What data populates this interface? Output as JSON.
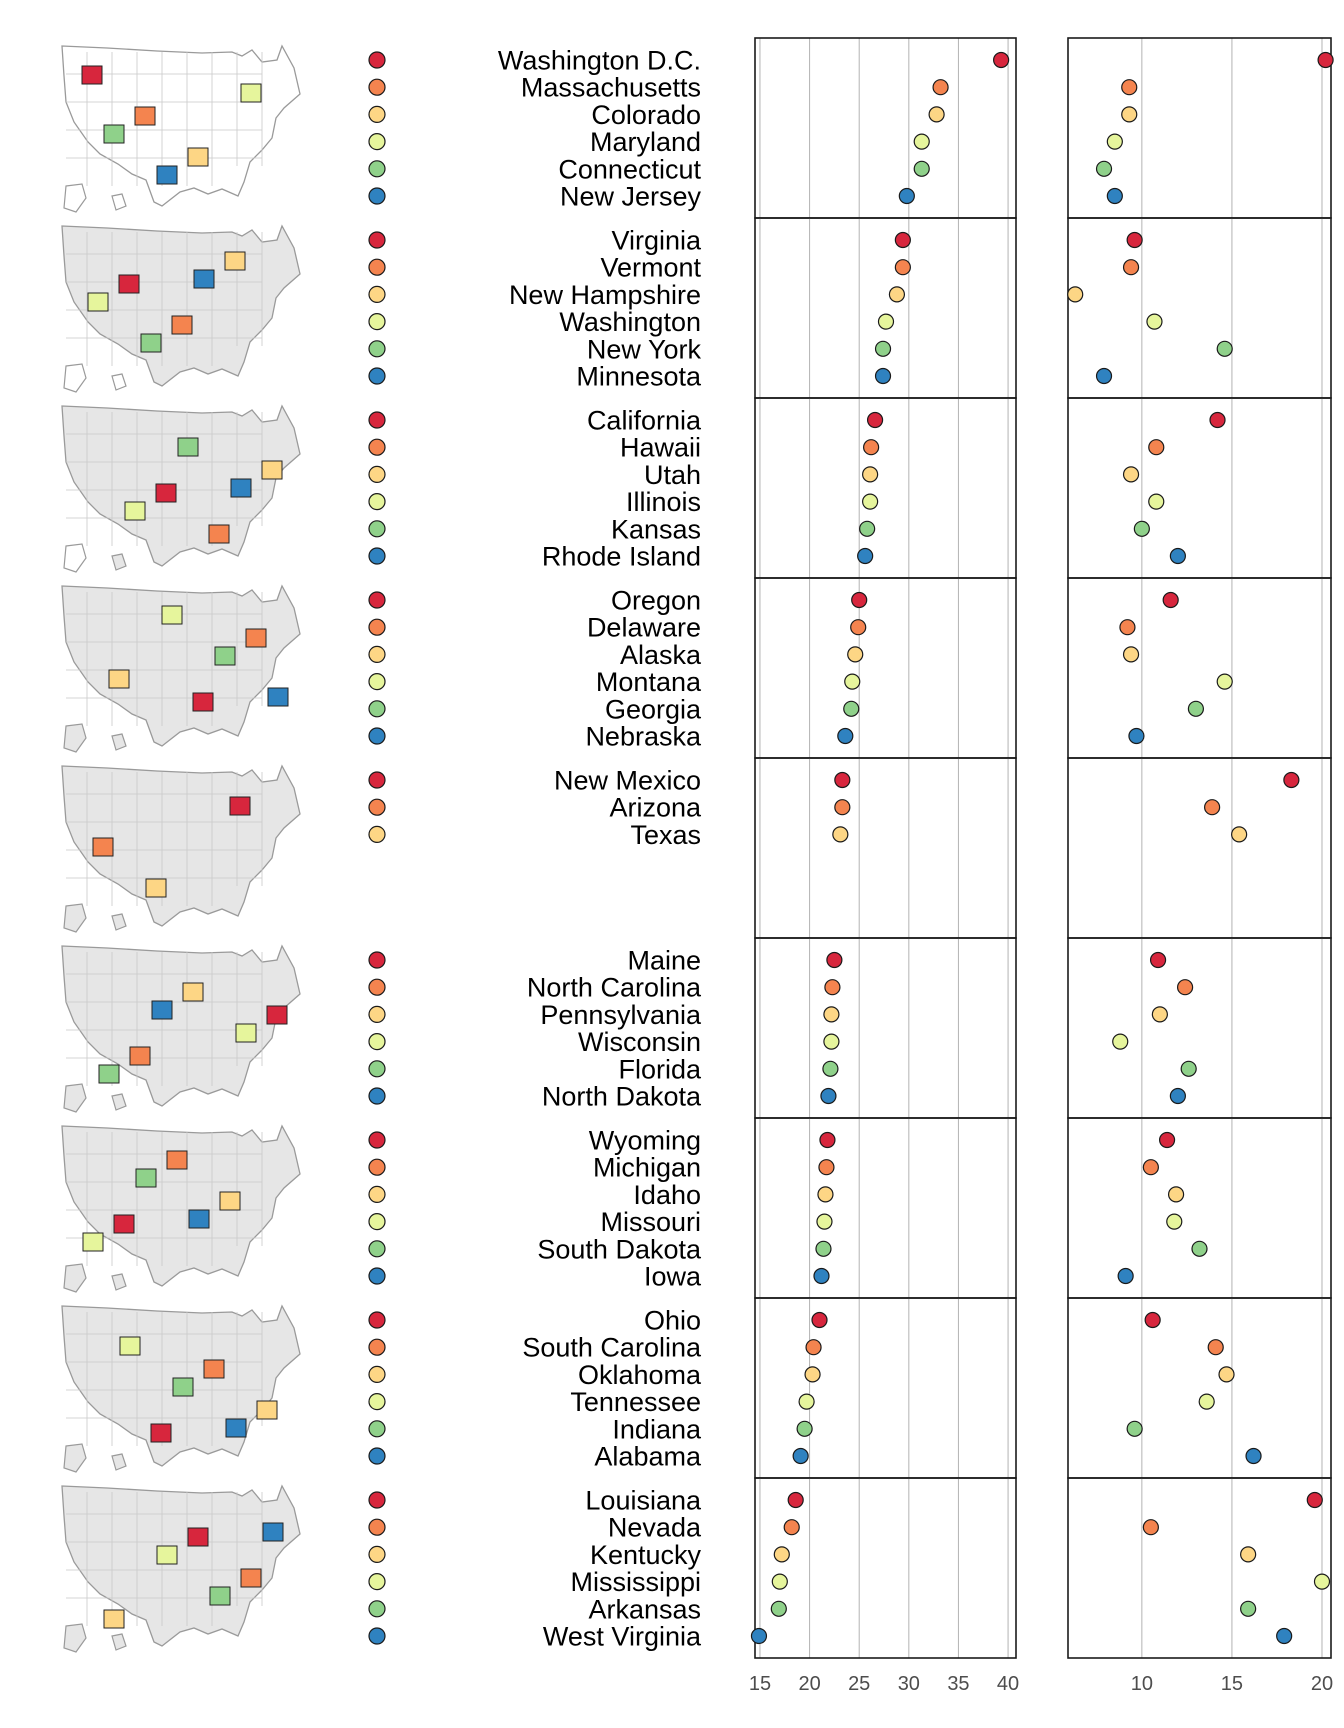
{
  "chart_data": {
    "type": "scatter",
    "colors": [
      "#d7263d",
      "#f4844f",
      "#fdd685",
      "#e6f59c",
      "#8fd18a",
      "#2f82c0"
    ],
    "x_axis_left": {
      "ticks": [
        15,
        20,
        25,
        30,
        35,
        40
      ],
      "range": [
        14.5,
        40.8
      ],
      "grid": true
    },
    "x_axis_right": {
      "ticks": [
        10,
        15,
        20
      ],
      "range": [
        5.9,
        20.5
      ],
      "grid": true
    },
    "groups": [
      {
        "states": [
          "Washington D.C.",
          "Massachusetts",
          "Colorado",
          "Maryland",
          "Connecticut",
          "New Jersey"
        ],
        "left_values": [
          39.3,
          33.2,
          32.8,
          31.3,
          31.3,
          29.8
        ],
        "right_values": [
          20.2,
          9.3,
          9.3,
          8.5,
          7.9,
          8.5
        ]
      },
      {
        "states": [
          "Virginia",
          "Vermont",
          "New Hampshire",
          "Washington",
          "New York",
          "Minnesota"
        ],
        "left_values": [
          29.4,
          29.4,
          28.8,
          27.7,
          27.4,
          27.4
        ],
        "right_values": [
          9.6,
          9.4,
          6.3,
          10.7,
          14.6,
          7.9
        ]
      },
      {
        "states": [
          "California",
          "Hawaii",
          "Utah",
          "Illinois",
          "Kansas",
          "Rhode Island"
        ],
        "left_values": [
          26.6,
          26.2,
          26.1,
          26.1,
          25.8,
          25.6
        ],
        "right_values": [
          14.2,
          10.8,
          9.4,
          10.8,
          10.0,
          12.0
        ]
      },
      {
        "states": [
          "Oregon",
          "Delaware",
          "Alaska",
          "Montana",
          "Georgia",
          "Nebraska"
        ],
        "left_values": [
          25.0,
          24.9,
          24.6,
          24.3,
          24.2,
          23.6
        ],
        "right_values": [
          11.6,
          9.2,
          9.4,
          14.6,
          13.0,
          9.7
        ]
      },
      {
        "states": [
          "New Mexico",
          "Arizona",
          "Texas"
        ],
        "left_values": [
          23.3,
          23.3,
          23.1
        ],
        "right_values": [
          18.3,
          13.9,
          15.4
        ]
      },
      {
        "states": [
          "Maine",
          "North Carolina",
          "Pennsylvania",
          "Wisconsin",
          "Florida",
          "North Dakota"
        ],
        "left_values": [
          22.5,
          22.3,
          22.2,
          22.2,
          22.1,
          21.9
        ],
        "right_values": [
          10.9,
          12.4,
          11.0,
          8.8,
          12.6,
          12.0
        ]
      },
      {
        "states": [
          "Wyoming",
          "Michigan",
          "Idaho",
          "Missouri",
          "South Dakota",
          "Iowa"
        ],
        "left_values": [
          21.8,
          21.7,
          21.6,
          21.5,
          21.4,
          21.2
        ],
        "right_values": [
          11.4,
          10.5,
          11.9,
          11.8,
          13.2,
          9.1
        ]
      },
      {
        "states": [
          "Ohio",
          "South Carolina",
          "Oklahoma",
          "Tennessee",
          "Indiana",
          "Alabama"
        ],
        "left_values": [
          21.0,
          20.4,
          20.3,
          19.7,
          19.5,
          19.1
        ],
        "right_values": [
          10.6,
          14.1,
          14.7,
          13.6,
          9.6,
          16.2
        ]
      },
      {
        "states": [
          "Louisiana",
          "Nevada",
          "Kentucky",
          "Mississippi",
          "Arkansas",
          "West Virginia"
        ],
        "left_values": [
          18.6,
          18.2,
          17.2,
          17.0,
          16.9,
          14.9
        ],
        "right_values": [
          19.6,
          10.5,
          15.9,
          20.0,
          15.9,
          17.9
        ]
      }
    ]
  }
}
